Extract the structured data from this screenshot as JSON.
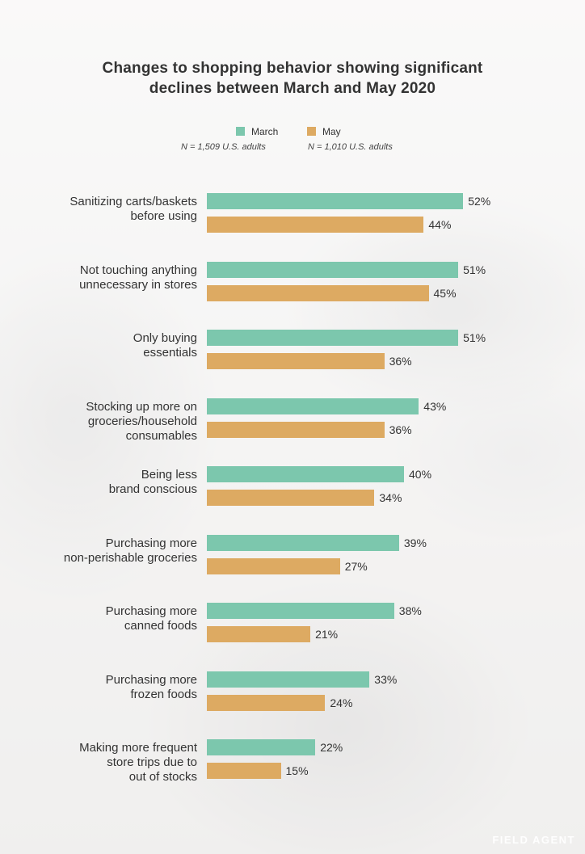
{
  "chart_data": {
    "type": "bar",
    "orientation": "horizontal",
    "title_lines": [
      "Changes to shopping behavior showing significant",
      "declines between March and May 2020"
    ],
    "legend": [
      {
        "name": "March",
        "note": "N = 1,509 U.S. adults",
        "color": "#7cc7ad"
      },
      {
        "name": "May",
        "note": "N = 1,010 U.S. adults",
        "color": "#ddaa62"
      }
    ],
    "categories": [
      [
        "Sanitizing carts/baskets",
        "before using"
      ],
      [
        "Not touching anything",
        "unnecessary in stores"
      ],
      [
        "Only buying",
        "essentials"
      ],
      [
        "Stocking up more on",
        "groceries/household",
        "consumables"
      ],
      [
        "Being less",
        "brand conscious"
      ],
      [
        "Purchasing more",
        "non-perishable groceries"
      ],
      [
        "Purchasing more",
        "canned foods"
      ],
      [
        "Purchasing more",
        "frozen foods"
      ],
      [
        "Making more frequent",
        "store trips due to",
        "out of stocks"
      ]
    ],
    "series": [
      {
        "name": "March",
        "values": [
          52,
          51,
          51,
          43,
          40,
          39,
          38,
          33,
          22
        ]
      },
      {
        "name": "May",
        "values": [
          44,
          45,
          36,
          36,
          34,
          27,
          21,
          24,
          15
        ]
      }
    ],
    "value_suffix": "%",
    "xlim": [
      0,
      100
    ],
    "grid": false,
    "legend_position": "top-center"
  },
  "brand": {
    "logo_text": "FIELD AGENT"
  }
}
